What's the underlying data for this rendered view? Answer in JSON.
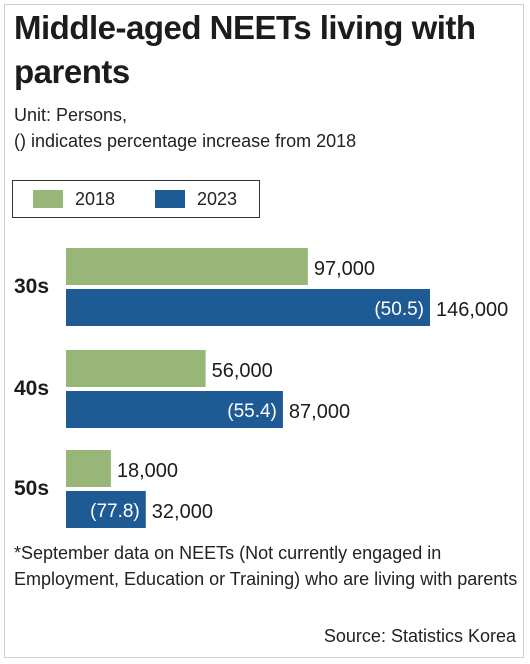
{
  "title": "Middle-aged NEETs living with parents",
  "unit_lines": [
    "Unit: Persons,",
    "() indicates percentage increase from 2018"
  ],
  "colors": {
    "s2018": "#98b677",
    "s2023": "#1e5b94"
  },
  "footnote": "*September data on NEETs (Not currently engaged in Employment, Education or Training) who are living with parents",
  "source": "Source: Statistics Korea",
  "chart_data": {
    "type": "bar",
    "orientation": "horizontal",
    "categories": [
      "30s",
      "40s",
      "50s"
    ],
    "series": [
      {
        "name": "2018",
        "values": [
          97000,
          56000,
          18000
        ]
      },
      {
        "name": "2023",
        "values": [
          146000,
          87000,
          32000
        ]
      }
    ],
    "value_labels": {
      "2018": [
        "97,000",
        "56,000",
        "18,000"
      ],
      "2023": [
        "146,000",
        "87,000",
        "32,000"
      ]
    },
    "increase_labels": [
      "(50.5)",
      "(55.4)",
      "(77.8)"
    ],
    "xlim": [
      0,
      146000
    ],
    "legend": "top-left",
    "grid": false
  }
}
